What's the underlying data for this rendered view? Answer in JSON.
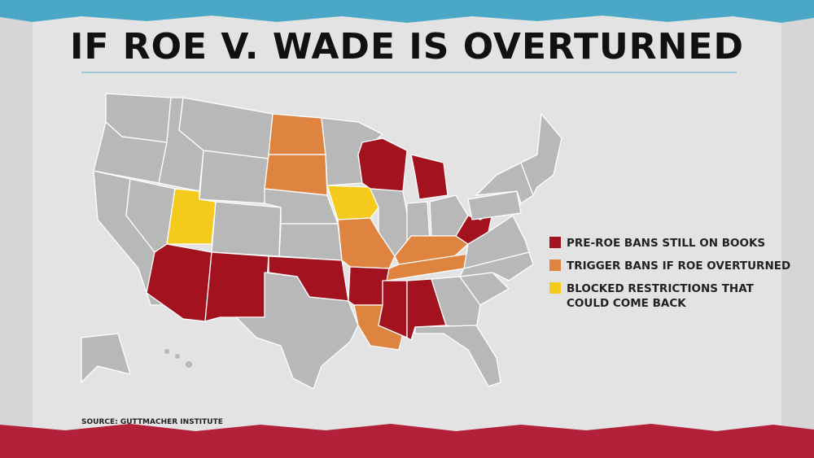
{
  "header": {
    "title": "IF ROE V. WADE IS OVERTURNED"
  },
  "legend": {
    "items": [
      {
        "lines": [
          "PRE-ROE BANS STILL ON BOOKS"
        ]
      },
      {
        "lines": [
          "TRIGGER BANS IF ROE OVERTURNED"
        ]
      },
      {
        "lines": [
          "BLOCKED RESTRICTIONS THAT",
          "COULD COME BACK"
        ]
      }
    ]
  },
  "source": "SOURCE: GUTTMACHER INSTITUTE"
}
